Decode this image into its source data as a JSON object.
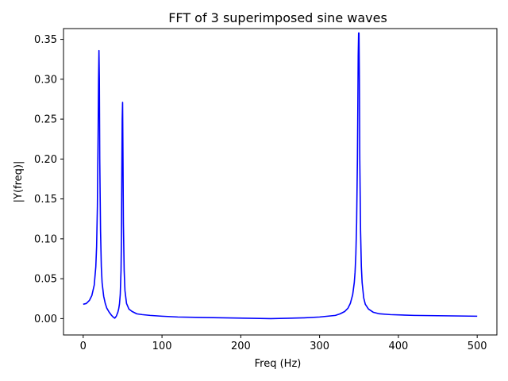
{
  "chart_data": {
    "type": "line",
    "title": "FFT of 3 superimposed sine waves",
    "xlabel": "Freq (Hz)",
    "ylabel": "|Y(freq)|",
    "xlim": [
      -25,
      525
    ],
    "ylim": [
      -0.0205,
      0.3635
    ],
    "xticks": [
      0,
      100,
      200,
      300,
      400,
      500
    ],
    "xtick_labels": [
      "0",
      "100",
      "200",
      "300",
      "400",
      "500"
    ],
    "yticks": [
      0.0,
      0.05,
      0.1,
      0.15,
      0.2,
      0.25,
      0.3,
      0.35
    ],
    "ytick_labels": [
      "0.00",
      "0.05",
      "0.10",
      "0.15",
      "0.20",
      "0.25",
      "0.30",
      "0.35"
    ],
    "grid": false,
    "legend": null,
    "color": "#0000ff",
    "series": [
      {
        "x": [
          0,
          4,
          8,
          11,
          14,
          16,
          17,
          18,
          19,
          19.5,
          20,
          20.5,
          21,
          22,
          23,
          24,
          26,
          28,
          30,
          33,
          36,
          38,
          40,
          42,
          44,
          45,
          46,
          47,
          48,
          48.5,
          49,
          49.5,
          50,
          50.5,
          51,
          52,
          53,
          55,
          58,
          62,
          68,
          75,
          85,
          100,
          120,
          150,
          180,
          210,
          238,
          260,
          280,
          300,
          310,
          320,
          326,
          332,
          336,
          339,
          342,
          344,
          345,
          346,
          347,
          348,
          348.5,
          349,
          349.5,
          350,
          350.5,
          351,
          352,
          353,
          354,
          356,
          358,
          362,
          368,
          376,
          390,
          420,
          460,
          500
        ],
        "y": [
          0.018,
          0.019,
          0.023,
          0.029,
          0.042,
          0.065,
          0.09,
          0.14,
          0.24,
          0.3,
          0.336,
          0.3,
          0.2,
          0.11,
          0.065,
          0.045,
          0.028,
          0.019,
          0.013,
          0.008,
          0.004,
          0.002,
          0.0005,
          0.003,
          0.008,
          0.012,
          0.018,
          0.03,
          0.06,
          0.1,
          0.18,
          0.25,
          0.271,
          0.2,
          0.12,
          0.06,
          0.035,
          0.019,
          0.012,
          0.009,
          0.006,
          0.005,
          0.004,
          0.003,
          0.002,
          0.0015,
          0.001,
          0.0005,
          0.0,
          0.0005,
          0.001,
          0.002,
          0.003,
          0.004,
          0.006,
          0.009,
          0.013,
          0.019,
          0.03,
          0.045,
          0.058,
          0.08,
          0.12,
          0.2,
          0.26,
          0.33,
          0.358,
          0.358,
          0.3,
          0.2,
          0.11,
          0.065,
          0.045,
          0.026,
          0.018,
          0.012,
          0.008,
          0.006,
          0.005,
          0.004,
          0.0035,
          0.003
        ]
      }
    ]
  }
}
